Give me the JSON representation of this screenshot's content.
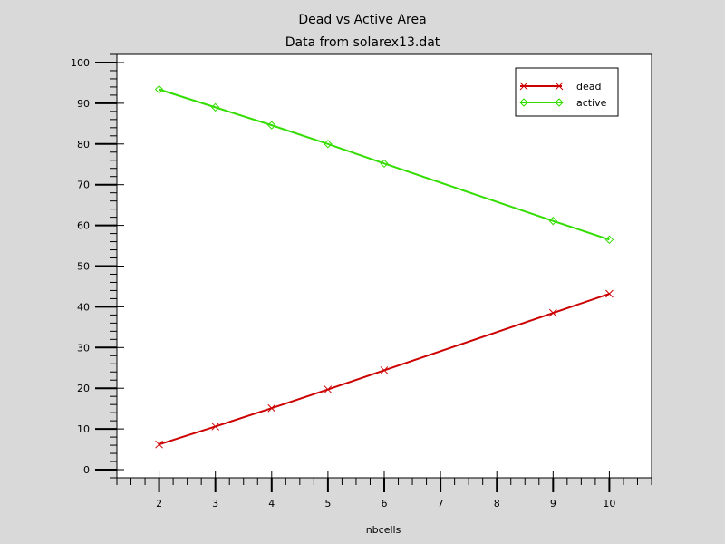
{
  "chart_data": {
    "type": "line",
    "title": "Dead vs Active Area",
    "subtitle": "Data from solarex13.dat",
    "xlabel": "nbcells",
    "ylabel": "",
    "xlim": [
      1.25,
      10.75
    ],
    "ylim": [
      -2,
      102
    ],
    "x_ticks": [
      2,
      3,
      4,
      5,
      6,
      7,
      8,
      9,
      10
    ],
    "y_ticks": [
      0,
      10,
      20,
      30,
      40,
      50,
      60,
      70,
      80,
      90,
      100
    ],
    "grid": false,
    "legend_position": "top-right",
    "series": [
      {
        "name": "dead",
        "color": "#cc0000",
        "marker": "x",
        "x": [
          2,
          3,
          4,
          5,
          6,
          9,
          10
        ],
        "y": [
          6.2,
          10.6,
          15.1,
          19.7,
          24.4,
          38.5,
          43.2
        ]
      },
      {
        "name": "active",
        "color": "#33dd00",
        "marker": "diamond",
        "x": [
          2,
          3,
          4,
          5,
          6,
          9,
          10
        ],
        "y": [
          93.4,
          89.0,
          84.6,
          80.0,
          75.2,
          61.1,
          56.5
        ]
      }
    ]
  }
}
